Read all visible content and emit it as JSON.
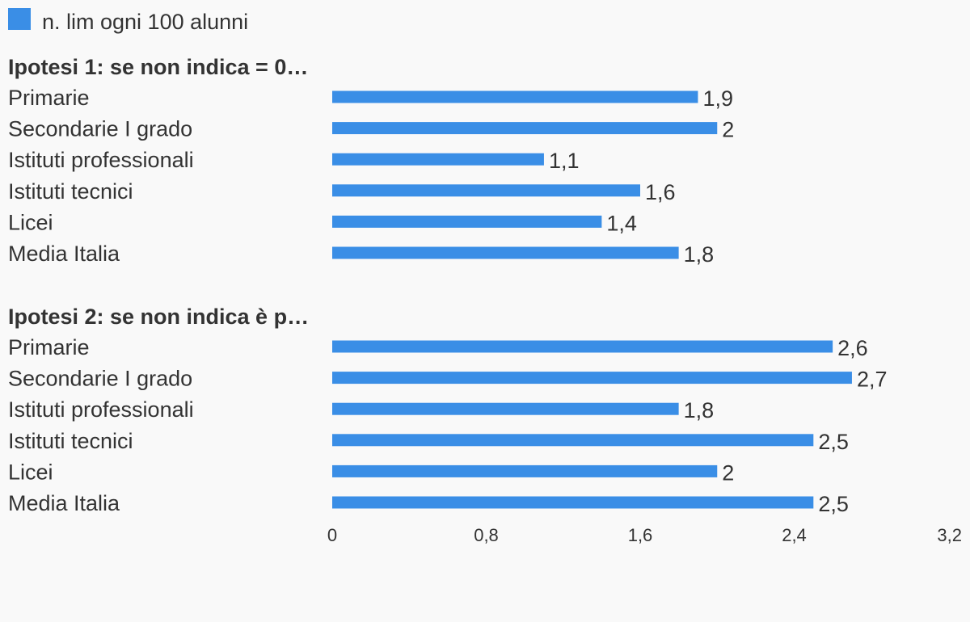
{
  "chart_data": {
    "type": "bar",
    "orientation": "horizontal",
    "legend": {
      "position": "top-left"
    },
    "series": [
      {
        "name": "n. lim ogni 100 alunni",
        "color": "#3a8ee6"
      }
    ],
    "groups": [
      {
        "label": "Ipotesi 1: se non indica = 0…",
        "categories": [
          "Primarie",
          "Secondarie I grado",
          "Istituti professionali",
          "Istituti tecnici",
          "Licei",
          "Media Italia"
        ],
        "values": [
          1.9,
          2,
          1.1,
          1.6,
          1.4,
          1.8
        ],
        "value_labels": [
          "1,9",
          "2",
          "1,1",
          "1,6",
          "1,4",
          "1,8"
        ]
      },
      {
        "label": "Ipotesi 2: se non indica è p…",
        "categories": [
          "Primarie",
          "Secondarie I grado",
          "Istituti professionali",
          "Istituti tecnici",
          "Licei",
          "Media Italia"
        ],
        "values": [
          2.6,
          2.7,
          1.8,
          2.5,
          2,
          2.5
        ],
        "value_labels": [
          "2,6",
          "2,7",
          "1,8",
          "2,5",
          "2",
          "2,5"
        ]
      }
    ],
    "x_axis": {
      "range": [
        0,
        3.2
      ],
      "ticks": [
        0,
        0.8,
        1.6,
        2.4,
        3.2
      ],
      "tick_labels": [
        "0",
        "0,8",
        "1,6",
        "2,4",
        "3,2"
      ]
    },
    "grid": false
  }
}
